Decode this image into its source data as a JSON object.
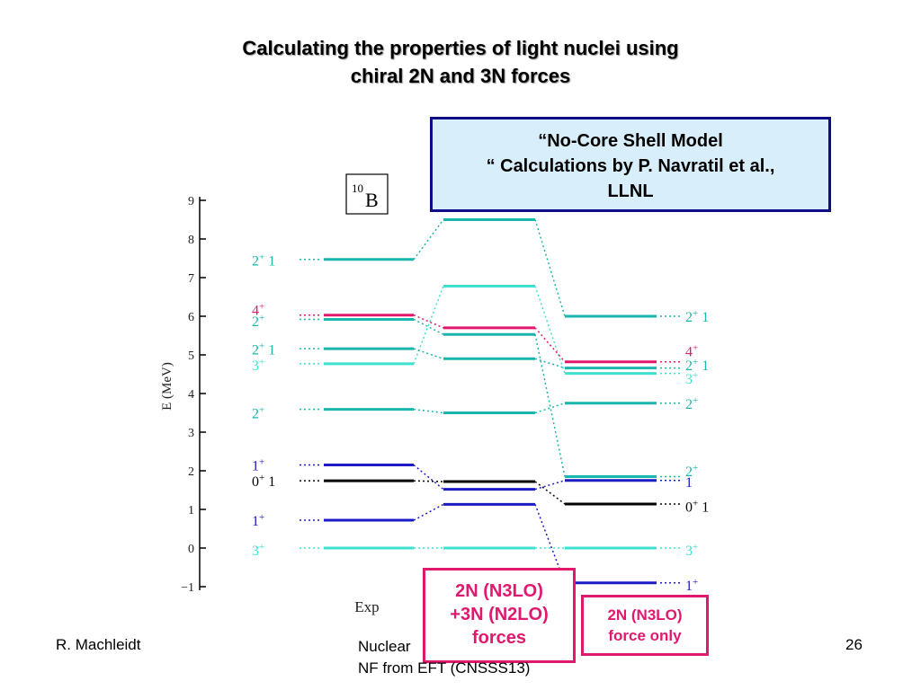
{
  "slide": {
    "title_line1": "Calculating the properties of light nuclei using",
    "title_line2": "chiral 2N and 3N forces",
    "callout_line1": "“No-Core Shell Model",
    "callout_line2": "“ Calculations by P. Navratil et al.,",
    "callout_line3": "LLNL",
    "box1_line1": "2N (N3LO)",
    "box1_line2": "+3N (N2LO)",
    "box1_line3": "forces",
    "box2_line1": "2N (N3LO)",
    "box2_line2": "force only",
    "footer_left": "R. Machleidt",
    "footer_mid_line1": "Nuclear",
    "footer_mid_line2": "NF from EFT (CNSSS13)",
    "page_number": "26"
  },
  "colors": {
    "teal": "#1ab5ad",
    "light_teal": "#3fe0cf",
    "magenta": "#e0186e",
    "blue": "#1c1cc4",
    "black": "#000000",
    "callout_bg": "#d8eefa",
    "callout_border": "#0d0d8a"
  },
  "chart_data": {
    "type": "energy_level_diagram",
    "nucleus_mass": "10",
    "nucleus_symbol": "B",
    "ylabel": "E (MeV)",
    "ylim": [
      -1,
      9
    ],
    "yticks": [
      "9",
      "8",
      "7",
      "6",
      "5",
      "4",
      "3",
      "2",
      "1",
      "0",
      "−1"
    ],
    "ytick_values": [
      9,
      8,
      7,
      6,
      5,
      4,
      3,
      2,
      1,
      0,
      -1
    ],
    "columns": [
      "Exp",
      "2N (N3LO) +3N (N2LO)",
      "2N (N3LO)"
    ],
    "xlabel_exp": "Exp",
    "levels": [
      {
        "state": "3+ 0",
        "color": "light_teal",
        "energies": [
          0,
          0,
          0
        ]
      },
      {
        "state": "1+ 0",
        "color": "blue",
        "energies": [
          0.72,
          1.13,
          -0.9
        ]
      },
      {
        "state": "0+ 1",
        "color": "black",
        "energies": [
          1.74,
          1.72,
          1.14
        ]
      },
      {
        "state": "1+ 0 (2nd)",
        "color": "blue",
        "energies": [
          2.15,
          1.52,
          1.75
        ]
      },
      {
        "state": "2+ 0",
        "color": "teal",
        "energies": [
          3.59,
          3.5,
          3.75
        ]
      },
      {
        "state": "3+ 0 (2nd)",
        "color": "light_teal",
        "energies": [
          4.77,
          6.78,
          4.52
        ]
      },
      {
        "state": "2+ 1",
        "color": "teal",
        "energies": [
          5.16,
          4.9,
          4.66
        ]
      },
      {
        "state": "2+ 0 (2nd)",
        "color": "teal",
        "energies": [
          5.92,
          5.53,
          1.85
        ]
      },
      {
        "state": "4+ 0",
        "color": "magenta",
        "energies": [
          6.03,
          5.7,
          4.82
        ]
      },
      {
        "state": "2+ 1 (2nd)",
        "color": "teal",
        "energies": [
          7.47,
          8.5,
          6.0
        ]
      }
    ],
    "left_labels": [
      {
        "main": "3",
        "sup": "+",
        "iso": "",
        "energy": -0.05,
        "color": "light_teal"
      },
      {
        "main": "1",
        "sup": "+",
        "iso": "",
        "energy": 0.72,
        "color": "blue"
      },
      {
        "main": "0",
        "sup": "+",
        "iso": " 1",
        "energy": 1.74,
        "color": "black"
      },
      {
        "main": "1",
        "sup": "+",
        "iso": "",
        "energy": 2.15,
        "color": "blue"
      },
      {
        "main": "2",
        "sup": "+",
        "iso": "",
        "energy": 3.5,
        "color": "teal"
      },
      {
        "main": "3",
        "sup": "+",
        "iso": "",
        "energy": 4.75,
        "color": "light_teal"
      },
      {
        "main": "2",
        "sup": "+",
        "iso": " 1",
        "energy": 5.15,
        "color": "teal"
      },
      {
        "main": "2",
        "sup": "+",
        "iso": "",
        "energy": 5.88,
        "color": "teal"
      },
      {
        "main": "4",
        "sup": "+",
        "iso": "",
        "energy": 6.18,
        "color": "magenta"
      },
      {
        "main": "2",
        "sup": "+",
        "iso": " 1",
        "energy": 7.45,
        "color": "teal"
      }
    ],
    "right_labels": [
      {
        "main": "3",
        "sup": "+",
        "iso": "",
        "energy": -0.05,
        "color": "light_teal"
      },
      {
        "main": "1",
        "sup": "+",
        "iso": "",
        "energy": -0.95,
        "color": "blue"
      },
      {
        "main": "0",
        "sup": "+",
        "iso": " 1",
        "energy": 1.08,
        "color": "teal_black"
      },
      {
        "main": "1",
        "sup": "",
        "iso": "",
        "energy": 1.72,
        "color": "blue"
      },
      {
        "main": "2",
        "sup": "+",
        "iso": "",
        "energy": 2.0,
        "color": "teal"
      },
      {
        "main": "2",
        "sup": "+",
        "iso": "",
        "energy": 3.75,
        "color": "teal"
      },
      {
        "main": "3",
        "sup": "+",
        "iso": "",
        "energy": 4.4,
        "color": "light_teal"
      },
      {
        "main": "2",
        "sup": "+",
        "iso": " 1",
        "energy": 4.75,
        "color": "teal"
      },
      {
        "main": "4",
        "sup": "+",
        "iso": "",
        "energy": 5.1,
        "color": "magenta"
      },
      {
        "main": "2",
        "sup": "+",
        "iso": " 1",
        "energy": 6.0,
        "color": "teal"
      }
    ]
  }
}
